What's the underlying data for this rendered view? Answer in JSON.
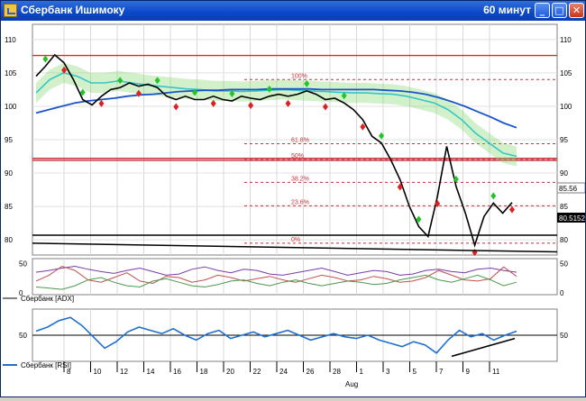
{
  "window": {
    "title": "Сбербанк Ишимоку",
    "timeframe": "60 минут",
    "buttons": {
      "minimize": "_",
      "maximize": "□",
      "close": "✕"
    }
  },
  "colors": {
    "price": "#000000",
    "cloud": "#7fd86a",
    "kijun": "#1a54c8",
    "senkou": "#36c6c6",
    "fib_line": "#c8303a",
    "support": "#000000",
    "rsi": "#1f6fcf",
    "signal_up": "#22c42a",
    "signal_down": "#e02020"
  },
  "chart_data": [
    {
      "type": "line",
      "name": "price-panel",
      "y_ticks": [
        "110",
        "105",
        "100",
        "95",
        "90",
        "85",
        "80"
      ],
      "ylim": [
        78,
        112
      ],
      "fib_levels": [
        {
          "label": "100%",
          "value": 104.0
        },
        {
          "label": "61.8%",
          "value": 94.4
        },
        {
          "label": "50%",
          "value": 92.0
        },
        {
          "label": "38.2%",
          "value": 88.6
        },
        {
          "label": "23.6%",
          "value": 85.1
        },
        {
          "label": "0%",
          "value": 79.5
        }
      ],
      "horizontal_lines": [
        107.6,
        92.2,
        91.9,
        80.7
      ],
      "price_label_last": "85.56",
      "price_label_support": "80.5152",
      "series": [
        {
          "key": "close",
          "values": [
            104.5,
            106.0,
            107.7,
            106.5,
            104.0,
            101.0,
            100.2,
            101.5,
            102.5,
            102.8,
            103.5,
            103.0,
            103.3,
            102.8,
            101.5,
            101.0,
            101.5,
            101.0,
            101.0,
            101.5,
            101.0,
            100.8,
            101.5,
            101.2,
            101.0,
            101.5,
            101.8,
            101.5,
            101.8,
            102.3,
            101.8,
            101.0,
            101.2,
            100.5,
            99.5,
            98.0,
            95.5,
            94.5,
            92.0,
            89.0,
            85.0,
            82.0,
            80.5,
            86.5,
            94.0,
            88.0,
            84.0,
            79.2,
            83.5,
            85.5,
            84.0,
            85.6
          ]
        },
        {
          "key": "kijun",
          "values": [
            99.0,
            99.5,
            100.0,
            100.5,
            100.8,
            101.0,
            101.2,
            101.5,
            101.7,
            101.8,
            102.0,
            102.2,
            102.3,
            102.4,
            102.4,
            102.5,
            102.5,
            102.5,
            102.6,
            102.6,
            102.6,
            102.6,
            102.5,
            102.5,
            102.5,
            102.5,
            102.5,
            102.4,
            102.3,
            102.1,
            101.8,
            101.3,
            100.7,
            100.0,
            99.2,
            98.4,
            97.5,
            96.8
          ]
        },
        {
          "key": "senkou",
          "values": [
            102.0,
            104.0,
            105.0,
            104.5,
            103.5,
            103.5,
            103.8,
            103.5,
            103.2,
            103.0,
            102.8,
            102.6,
            102.5,
            102.3,
            102.3,
            102.2,
            102.3,
            102.4,
            102.5,
            102.4,
            102.3,
            102.2,
            102.1,
            102.0,
            102.0,
            101.9,
            101.8,
            101.5,
            101.0,
            100.5,
            99.5,
            98.0,
            96.0,
            94.5,
            93.0,
            92.5
          ]
        }
      ]
    },
    {
      "type": "line",
      "name": "adx-panel",
      "legend": "Сбербанк [ADX]",
      "y_ticks": [
        "50",
        "0"
      ],
      "ylim": [
        0,
        55
      ],
      "series": [
        {
          "key": "adx",
          "values": [
            35,
            38,
            42,
            45,
            40,
            36,
            33,
            38,
            42,
            36,
            30,
            32,
            40,
            44,
            38,
            34,
            40,
            38,
            32,
            30,
            34,
            38,
            42,
            36,
            30,
            34,
            38,
            36,
            30,
            32,
            38,
            40,
            36,
            34,
            40,
            42,
            38,
            35
          ]
        },
        {
          "key": "plus_di",
          "values": [
            20,
            30,
            45,
            38,
            22,
            18,
            26,
            34,
            20,
            16,
            28,
            26,
            18,
            22,
            30,
            26,
            20,
            24,
            28,
            22,
            18,
            24,
            30,
            26,
            20,
            22,
            28,
            24,
            18,
            20,
            26,
            38,
            30,
            22,
            20,
            24,
            44,
            28
          ]
        },
        {
          "key": "minus_di",
          "values": [
            10,
            8,
            6,
            12,
            22,
            26,
            18,
            12,
            10,
            20,
            24,
            18,
            12,
            10,
            14,
            20,
            22,
            16,
            12,
            18,
            22,
            16,
            12,
            16,
            20,
            18,
            14,
            16,
            22,
            26,
            30,
            22,
            18,
            24,
            30,
            22,
            12,
            18
          ]
        }
      ]
    },
    {
      "type": "line",
      "name": "rsi-panel",
      "legend": "Сбербанк [RSI]",
      "y_ticks": [
        "50"
      ],
      "ylim": [
        20,
        80
      ],
      "series": [
        {
          "key": "rsi",
          "values": [
            55,
            60,
            68,
            72,
            62,
            48,
            34,
            42,
            54,
            60,
            56,
            52,
            58,
            50,
            44,
            52,
            56,
            46,
            50,
            54,
            48,
            52,
            56,
            50,
            44,
            48,
            52,
            48,
            46,
            50,
            44,
            40,
            36,
            42,
            38,
            28,
            44,
            56,
            48,
            52,
            44,
            50,
            55
          ]
        }
      ]
    }
  ],
  "x_axis": {
    "ticks": [
      "8",
      "10",
      "12",
      "14",
      "16",
      "18",
      "20",
      "22",
      "24",
      "26",
      "28",
      "1",
      "3",
      "5",
      "7",
      "9",
      "11"
    ],
    "month": "Aug"
  }
}
